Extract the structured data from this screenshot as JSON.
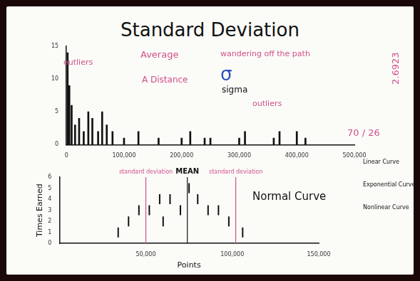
{
  "title": "Standard Deviation",
  "chart_data": [
    {
      "type": "bar",
      "x": [
        2000,
        5000,
        9000,
        15000,
        22000,
        30000,
        38000,
        45000,
        55000,
        62000,
        70000,
        80000,
        100000,
        125000,
        160000,
        200000,
        215000,
        240000,
        250000,
        300000,
        310000,
        360000,
        370000,
        400000,
        415000
      ],
      "values": [
        14,
        9,
        6,
        3,
        4,
        2,
        5,
        4,
        2,
        5,
        3,
        2,
        1,
        2,
        1,
        1,
        2,
        1,
        1,
        1,
        2,
        1,
        2,
        2,
        1
      ],
      "color": "#111111",
      "xlim": [
        0,
        500000
      ],
      "xticks": [
        0,
        {
          "value": 100000,
          "label": "100,000"
        },
        {
          "value": 200000,
          "label": "200,000"
        },
        {
          "value": 300000,
          "label": "300,000"
        },
        {
          "value": 400000,
          "label": "400,000"
        },
        {
          "value": 500000,
          "label": "500,000"
        }
      ],
      "ylim": [
        0,
        15
      ],
      "yticks": [
        0,
        5,
        10,
        15
      ],
      "grid": false,
      "annotations": [
        {
          "text": "outliers",
          "color": "#d0508a"
        },
        {
          "text": "Average",
          "color": "#d0508a"
        },
        {
          "text": "wandering off the path",
          "color": "#d0508a"
        },
        {
          "text": "A Distance",
          "color": "#d0508a"
        },
        {
          "text": "σ",
          "color": "#2f4fc4"
        },
        {
          "text": "sigma",
          "color": "#111111"
        },
        {
          "text": "outliers",
          "color": "#d0508a"
        }
      ]
    },
    {
      "type": "scatter",
      "title": "Normal Curve",
      "x_label": "Points",
      "y_label": "Times Earned",
      "x": [
        34000,
        40000,
        46000,
        52000,
        58000,
        60000,
        64000,
        70000,
        75000,
        80000,
        86000,
        92000,
        98000,
        106000
      ],
      "values": [
        1,
        2,
        3,
        3,
        4,
        2,
        4,
        3,
        5,
        4,
        3,
        3,
        2,
        1
      ],
      "color": "#111111",
      "marker": "line",
      "xlim": [
        0,
        150000
      ],
      "xticks": [
        {
          "value": 50000,
          "label": "50,000"
        },
        {
          "value": 100000,
          "label": "100,000"
        },
        {
          "value": 150000,
          "label": "150,000"
        }
      ],
      "ylim": [
        0,
        6
      ],
      "yticks": [
        0,
        1,
        2,
        3,
        4,
        5,
        6
      ],
      "grid": false,
      "reference_lines": [
        {
          "x": 50000,
          "label": "standard deviation",
          "color": "#d0508a"
        },
        {
          "x": 74000,
          "label": "MEAN",
          "color": "#111111"
        },
        {
          "x": 102000,
          "label": "standard deviation",
          "color": "#d0508a"
        }
      ]
    }
  ],
  "side_notes": [
    {
      "text": "2.6923",
      "color": "#d0508a"
    },
    {
      "text": "70 / 26",
      "color": "#d0508a"
    },
    {
      "text": "Linear Curve",
      "color": "#111111"
    },
    {
      "text": "Exponential Curve",
      "color": "#111111"
    },
    {
      "text": "Nonlinear Curve",
      "color": "#111111"
    }
  ]
}
